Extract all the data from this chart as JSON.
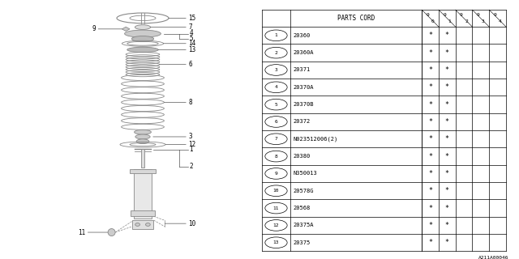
{
  "bg_color": "#ffffff",
  "title_code": "A211A00046",
  "table": {
    "header_label": "PARTS CORD",
    "year_cols": [
      "9\n0",
      "9\n1",
      "9\n2",
      "9\n3",
      "9\n4"
    ],
    "rows": [
      {
        "num": "1",
        "code": "20360",
        "marks": [
          true,
          true,
          false,
          false,
          false
        ]
      },
      {
        "num": "2",
        "code": "20360A",
        "marks": [
          true,
          true,
          false,
          false,
          false
        ]
      },
      {
        "num": "3",
        "code": "20371",
        "marks": [
          true,
          true,
          false,
          false,
          false
        ]
      },
      {
        "num": "4",
        "code": "20370A",
        "marks": [
          true,
          true,
          false,
          false,
          false
        ]
      },
      {
        "num": "5",
        "code": "20370B",
        "marks": [
          true,
          true,
          false,
          false,
          false
        ]
      },
      {
        "num": "6",
        "code": "20372",
        "marks": [
          true,
          true,
          false,
          false,
          false
        ]
      },
      {
        "num": "7",
        "code": "N023512006(2)",
        "marks": [
          true,
          true,
          false,
          false,
          false
        ]
      },
      {
        "num": "8",
        "code": "20380",
        "marks": [
          true,
          true,
          false,
          false,
          false
        ]
      },
      {
        "num": "9",
        "code": "N350013",
        "marks": [
          true,
          true,
          false,
          false,
          false
        ]
      },
      {
        "num": "10",
        "code": "20578G",
        "marks": [
          true,
          true,
          false,
          false,
          false
        ]
      },
      {
        "num": "11",
        "code": "20568",
        "marks": [
          true,
          true,
          false,
          false,
          false
        ]
      },
      {
        "num": "12",
        "code": "20375A",
        "marks": [
          true,
          true,
          false,
          false,
          false
        ]
      },
      {
        "num": "13",
        "code": "20375",
        "marks": [
          true,
          true,
          false,
          false,
          false
        ]
      }
    ]
  }
}
